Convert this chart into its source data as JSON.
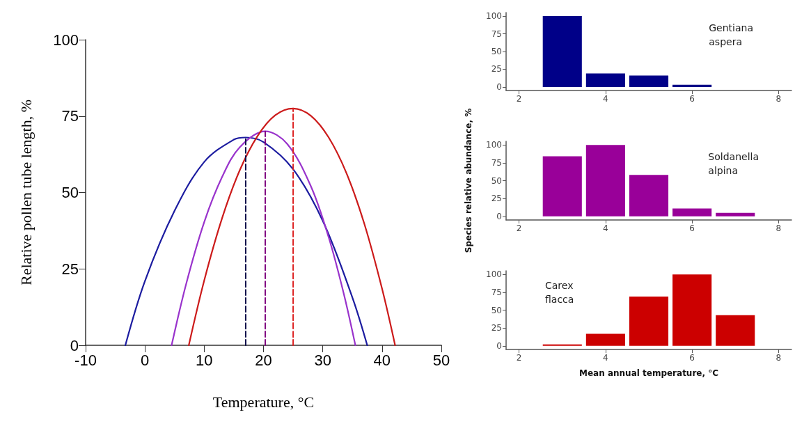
{
  "chart_data": [
    {
      "type": "line",
      "xlabel": "Temperature, °C",
      "ylabel": "Relative pollen tube length, %",
      "xlim": [
        -10,
        50
      ],
      "xticks": [
        -10,
        0,
        10,
        20,
        30,
        40,
        50
      ],
      "ylim": [
        0,
        100
      ],
      "yticks": [
        0,
        25,
        50,
        75,
        100
      ],
      "marker": "none",
      "line_style": "solid",
      "series": [
        {
          "color": "#1c1ca0",
          "x": [
            -3.3,
            0,
            5,
            10,
            15,
            17,
            20,
            25,
            30,
            35,
            37.5
          ],
          "values": [
            0,
            21,
            44,
            60,
            67.3,
            68,
            66.5,
            57.6,
            40.7,
            15.6,
            0
          ]
        },
        {
          "color": "#9933cc",
          "x": [
            4.5,
            7,
            10,
            13,
            16,
            20.3,
            24,
            28,
            31,
            33.5,
            35.5
          ],
          "values": [
            0,
            20.4,
            40.3,
            55,
            64.8,
            70,
            65.9,
            52,
            35.3,
            17.2,
            0
          ]
        },
        {
          "color": "#cc1a1a",
          "x": [
            7.4,
            10,
            13,
            16,
            19,
            22,
            25,
            28,
            31,
            34,
            37,
            40,
            42.2
          ],
          "values": [
            0,
            21.2,
            41.5,
            57.3,
            68.5,
            75.3,
            77.5,
            75.1,
            68,
            56.3,
            39.8,
            18.5,
            0
          ]
        },
        {
          "color": "#10104a",
          "line_style": "dashed",
          "x": [
            17,
            17
          ],
          "values": [
            0,
            68
          ]
        },
        {
          "color": "#800080",
          "line_style": "dashed",
          "x": [
            20.3,
            20.3
          ],
          "values": [
            0,
            70
          ]
        },
        {
          "color": "#dd2222",
          "line_style": "dashed",
          "x": [
            25,
            25
          ],
          "values": [
            0,
            77.5
          ]
        }
      ]
    },
    {
      "type": "histogram",
      "annotations": [
        "Gentiana\naspera"
      ],
      "bins": [
        2.5,
        3.5,
        4.5,
        5.5,
        6.5
      ],
      "values": [
        100,
        19,
        16,
        3
      ],
      "color": "#000088",
      "xlim": [
        1.7,
        8.3
      ],
      "xticks": [
        2,
        4,
        6,
        8
      ],
      "ylim": [
        -5,
        105
      ],
      "yticks": [
        0,
        25,
        50,
        75,
        100
      ]
    },
    {
      "type": "histogram",
      "ylabel": "Species relative abundance, %",
      "annotations": [
        "Soldanella\nalpina"
      ],
      "bins": [
        2.5,
        3.5,
        4.5,
        5.5,
        6.5,
        7.5
      ],
      "values": [
        84,
        100,
        58,
        11,
        5
      ],
      "color": "#990099",
      "xlim": [
        1.7,
        8.3
      ],
      "xticks": [
        2,
        4,
        6,
        8
      ],
      "ylim": [
        -5,
        105
      ],
      "yticks": [
        0,
        25,
        50,
        75,
        100
      ]
    },
    {
      "type": "histogram",
      "xlabel": "Mean annual temperature, °C",
      "annotations": [
        "Carex\nflacca"
      ],
      "bins": [
        2.5,
        3.5,
        4.5,
        5.5,
        6.5,
        7.5
      ],
      "values": [
        2,
        17,
        69,
        100,
        43
      ],
      "color": "#cc0000",
      "xlim": [
        1.7,
        8.3
      ],
      "xticks": [
        2,
        4,
        6,
        8
      ],
      "ylim": [
        -5,
        105
      ],
      "yticks": [
        0,
        25,
        50,
        75,
        100
      ]
    }
  ]
}
